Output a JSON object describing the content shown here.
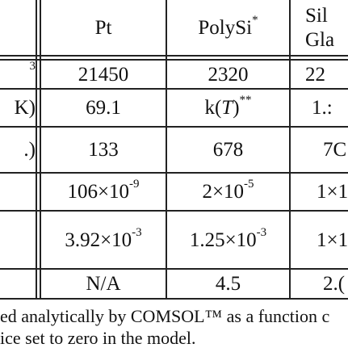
{
  "table": {
    "header": {
      "col_pt": "Pt",
      "col_polysi": "PolySi",
      "col_polysi_mark": "*",
      "col_silica_line1": "Sil",
      "col_silica_line2": "Gla"
    },
    "row_labels": {
      "r1": "3",
      "r2": "K)",
      "r3": ".)"
    },
    "rows": [
      {
        "pt": "21450",
        "polysi": "2320",
        "silica": "22"
      },
      {
        "pt": "69.1",
        "polysi_pre": "k(",
        "polysi_var": "T",
        "polysi_post": ")",
        "polysi_mark": "**",
        "silica": "1.:"
      },
      {
        "pt": "133",
        "polysi": "678",
        "silica": "7C"
      },
      {
        "pt_base": "106×10",
        "pt_exp": "-9",
        "polysi_base": "2×10",
        "polysi_exp": "-5",
        "silica": "1×1"
      },
      {
        "pt_base": "3.92×10",
        "pt_exp": "-3",
        "polysi_base": "1.25×10",
        "polysi_exp": "-3",
        "silica": "1×1"
      },
      {
        "pt": "N/A",
        "polysi": "4.5",
        "silica": "2.("
      }
    ]
  },
  "footnote": {
    "line1": "ed analytically by COMSOL™ as a function c",
    "line2": "ice set to zero in the model."
  }
}
